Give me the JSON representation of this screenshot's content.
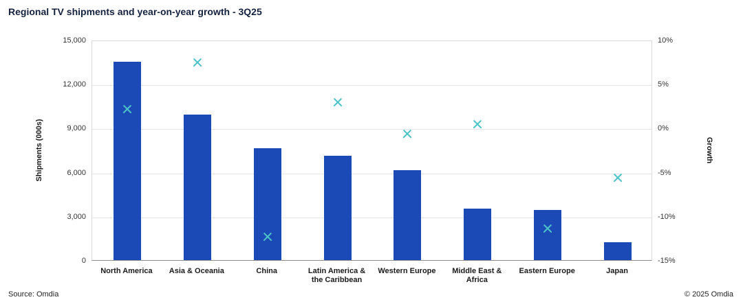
{
  "title": "Regional TV shipments and year-on-year growth - 3Q25",
  "footer": {
    "source": "Source: Omdia",
    "copyright": "© 2025 Omdia"
  },
  "chart_data": {
    "type": "bar+scatter",
    "title": "Regional TV shipments and year-on-year growth - 3Q25",
    "categories": [
      "North America",
      "Asia & Oceania",
      "China",
      "Latin America & the Caribbean",
      "Western Europe",
      "Middle East & Africa",
      "Eastern Europe",
      "Japan"
    ],
    "series": [
      {
        "name": "Shipments (000s)",
        "type": "bar",
        "axis": "left",
        "color": "#1b49b5",
        "values": [
          13500,
          9900,
          7600,
          7100,
          6100,
          3500,
          3400,
          1200
        ]
      },
      {
        "name": "Growth",
        "type": "scatter-x-marker",
        "axis": "right",
        "color": "#4cc3c6",
        "values": [
          2.3,
          7.6,
          -12.2,
          3.1,
          -0.5,
          0.6,
          -11.3,
          -5.5
        ]
      }
    ],
    "left_axis": {
      "label": "Shipments (000s)",
      "min": 0,
      "max": 15000,
      "tick_labels": [
        "0",
        "3,000",
        "6,000",
        "9,000",
        "12,000",
        "15,000"
      ]
    },
    "right_axis": {
      "label": "Growth",
      "min": -15,
      "max": 10,
      "tick_labels": [
        "-15%",
        "-10%",
        "-5%",
        "0%",
        "5%",
        "10%"
      ]
    },
    "grid": true,
    "legend": "none"
  }
}
